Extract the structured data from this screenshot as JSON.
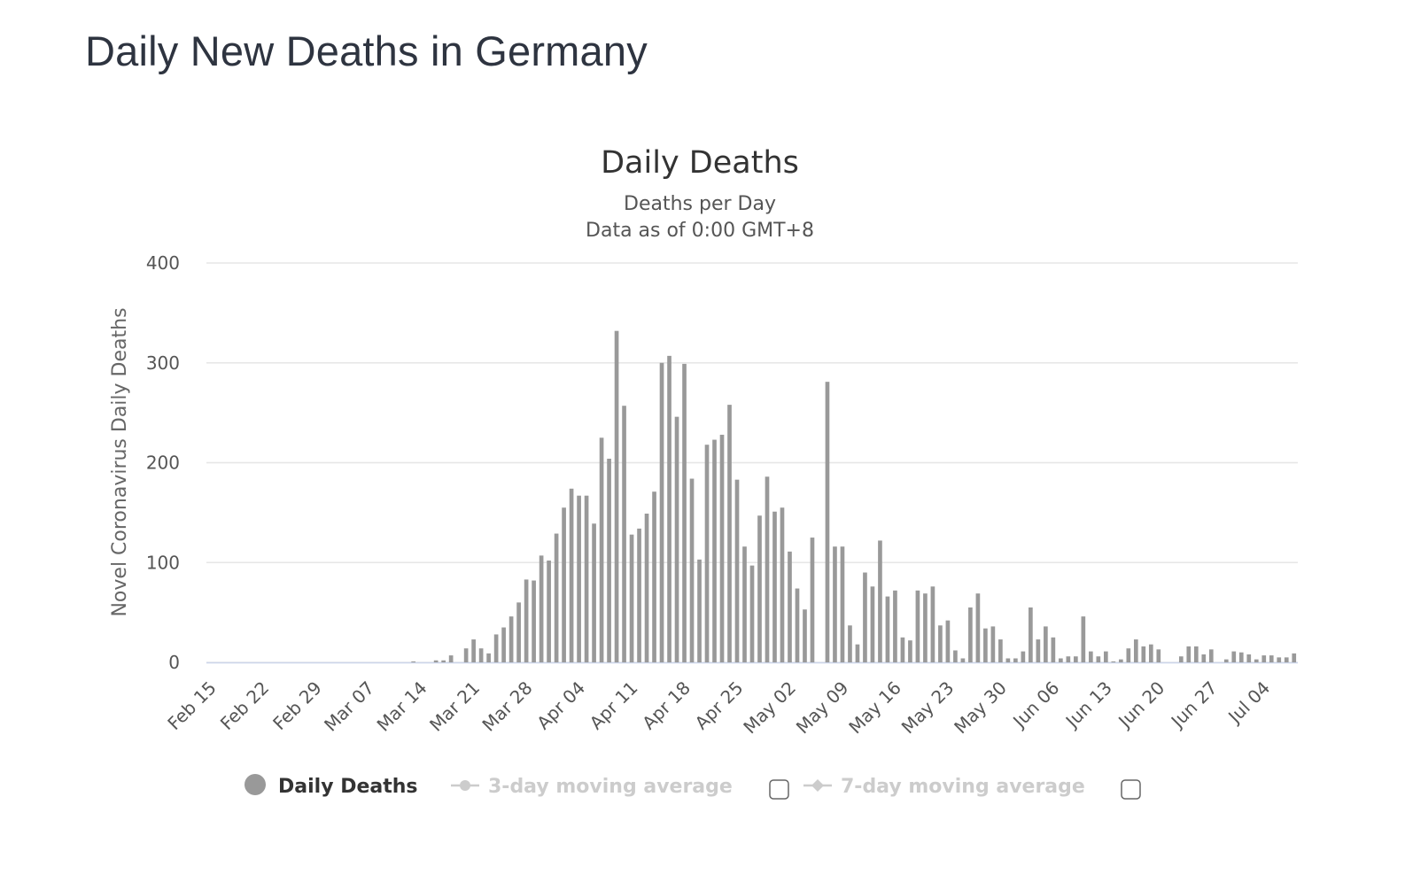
{
  "page_title": "Daily New Deaths in Germany",
  "chart_data": {
    "type": "bar",
    "title": "Daily Deaths",
    "subtitle_lines": [
      "Deaths per Day",
      "Data as of 0:00 GMT+8"
    ],
    "ylabel": "Novel Coronavirus Daily Deaths",
    "xlabel": "",
    "ylim": [
      0,
      400
    ],
    "yticks": [
      0,
      100,
      200,
      300,
      400
    ],
    "grid": true,
    "bar_color": "#999999",
    "x_start": "Feb 15",
    "x_end": "Jul 07",
    "xtick_labels": [
      "Feb 15",
      "Feb 22",
      "Feb 29",
      "Mar 07",
      "Mar 14",
      "Mar 21",
      "Mar 28",
      "Apr 04",
      "Apr 11",
      "Apr 18",
      "Apr 25",
      "May 02",
      "May 09",
      "May 16",
      "May 23",
      "May 30",
      "Jun 06",
      "Jun 13",
      "Jun 20",
      "Jun 27",
      "Jul 04"
    ],
    "values": [
      0,
      0,
      0,
      0,
      0,
      0,
      0,
      0,
      0,
      0,
      0,
      0,
      0,
      0,
      0,
      0,
      0,
      0,
      0,
      0,
      0,
      0,
      0,
      0,
      0,
      0,
      0,
      1,
      0,
      0,
      2,
      2,
      7,
      0,
      14,
      23,
      14,
      9,
      28,
      35,
      46,
      60,
      83,
      82,
      107,
      102,
      129,
      155,
      174,
      167,
      167,
      139,
      225,
      204,
      332,
      257,
      128,
      134,
      149,
      171,
      300,
      307,
      246,
      299,
      184,
      103,
      218,
      223,
      228,
      258,
      183,
      116,
      97,
      147,
      186,
      151,
      155,
      111,
      74,
      53,
      125,
      0,
      281,
      116,
      116,
      37,
      18,
      90,
      76,
      122,
      66,
      72,
      25,
      22,
      72,
      69,
      76,
      37,
      42,
      12,
      4,
      55,
      69,
      34,
      36,
      23,
      4,
      4,
      11,
      55,
      23,
      36,
      25,
      4,
      6,
      6,
      46,
      11,
      6,
      11,
      1,
      3,
      14,
      23,
      16,
      18,
      13,
      0,
      0,
      6,
      16,
      16,
      8,
      13,
      0,
      3,
      11,
      10,
      8,
      3,
      7,
      7,
      5,
      5,
      9
    ],
    "legend": [
      {
        "name": "Daily Deaths",
        "active": true
      },
      {
        "name": "3-day moving average",
        "active": false
      },
      {
        "name": "7-day moving average",
        "active": false
      }
    ],
    "legend_position": "bottom-center"
  },
  "colors": {
    "bar": "#999999",
    "legend_active": "#333333",
    "legend_inactive": "#cccccc",
    "grid": "#e6e6e6",
    "axis_line": "#ccd6eb"
  }
}
